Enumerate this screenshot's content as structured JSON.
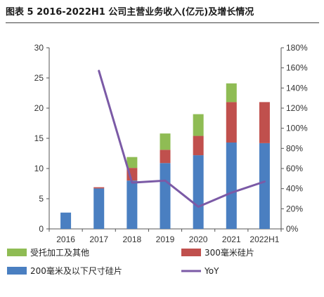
{
  "header": {
    "title": "图表 5 2016-2022H1 公司主营业务收入(亿元)及增长情况"
  },
  "chart_data": {
    "type": "bar",
    "stacked": true,
    "categories": [
      "2016",
      "2017",
      "2018",
      "2019",
      "2020",
      "2021",
      "2022H1"
    ],
    "series": [
      {
        "name": "200毫米及以下尺寸硅片",
        "color": "#4a7fc1",
        "values": [
          2.7,
          6.7,
          8.0,
          10.9,
          12.2,
          14.3,
          14.2
        ]
      },
      {
        "name": "300毫米硅片",
        "color": "#c0504d",
        "values": [
          0,
          0.2,
          2.1,
          2.2,
          3.2,
          6.7,
          6.8
        ]
      },
      {
        "name": "受托加工及其他",
        "color": "#8fbc54",
        "values": [
          0,
          0,
          1.8,
          2.7,
          3.6,
          3.1,
          0
        ]
      }
    ],
    "line_series": {
      "name": "YoY",
      "color": "#7b5aa6",
      "axis": "right",
      "values": [
        null,
        1.57,
        0.46,
        0.48,
        0.22,
        0.36,
        0.47
      ]
    },
    "y_left": {
      "min": 0,
      "max": 30,
      "ticks": [
        "0",
        "5",
        "10",
        "15",
        "20",
        "25",
        "30"
      ]
    },
    "y_right": {
      "min": 0,
      "max": 1.8,
      "ticks": [
        "0%",
        "20%",
        "40%",
        "60%",
        "80%",
        "100%",
        "120%",
        "140%",
        "160%",
        "180%"
      ]
    },
    "legend": [
      "受托加工及其他",
      "300毫米硅片",
      "200毫米及以下尺寸硅片",
      "YoY"
    ],
    "legend_placement": "bottom",
    "grid": false
  }
}
